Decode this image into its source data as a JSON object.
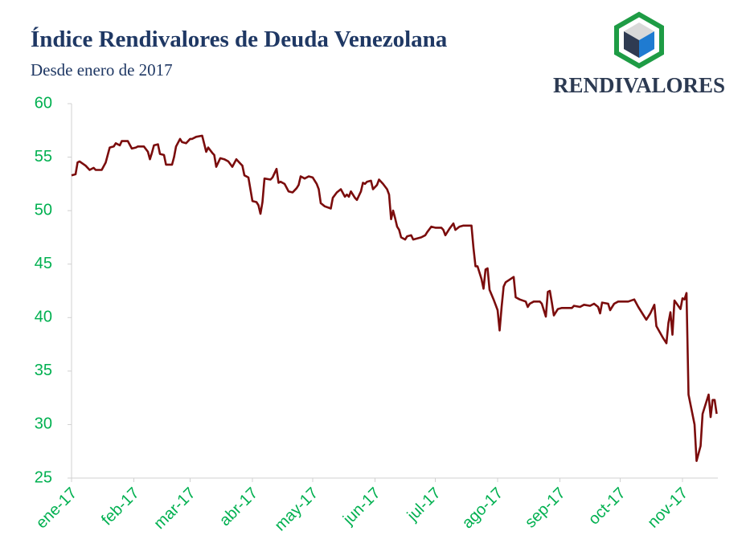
{
  "chart_data": {
    "type": "line",
    "title": "Índice Rendivalores de Deuda Venezolana",
    "subtitle": "Desde enero de 2017",
    "color": "#7b0c0c",
    "x": [
      0,
      2,
      3,
      4,
      7,
      9,
      11,
      12,
      15,
      17,
      19,
      21,
      22,
      24,
      25,
      28,
      30,
      32,
      33,
      36,
      38,
      39,
      40,
      41,
      43,
      44,
      46,
      47,
      50,
      51,
      52,
      54,
      55,
      57,
      59,
      60,
      62,
      65,
      67,
      68,
      70,
      71,
      72,
      74,
      76,
      78,
      80,
      82,
      84,
      85,
      86,
      88,
      90,
      92,
      93,
      94,
      95,
      96,
      99,
      100,
      102,
      103,
      104,
      106,
      108,
      110,
      112,
      113,
      114,
      116,
      118,
      120,
      122,
      123,
      124,
      126,
      129,
      130,
      132,
      134,
      136,
      137,
      138,
      139,
      141,
      142,
      144,
      145,
      146,
      147,
      149,
      150,
      152,
      153,
      155,
      157,
      158,
      159,
      160,
      161,
      162,
      163,
      164,
      166,
      167,
      169,
      170,
      172,
      174,
      176,
      177,
      179,
      181,
      184,
      185,
      186,
      188,
      190,
      191,
      193,
      195,
      199,
      200,
      201,
      202,
      204,
      205,
      206,
      207,
      208,
      210,
      211,
      212,
      213,
      214,
      215,
      216,
      220,
      221,
      223,
      226,
      227,
      228,
      230,
      233,
      234,
      236,
      237,
      238,
      239,
      240,
      242,
      244,
      247,
      249,
      250,
      253,
      255,
      258,
      260,
      262,
      263,
      264,
      267,
      268,
      270,
      272,
      275,
      277,
      280,
      282,
      284,
      286,
      288,
      290,
      291,
      294,
      296,
      297,
      298,
      299,
      300,
      303,
      304,
      305,
      306,
      307,
      310,
      311,
      313,
      314,
      317,
      318,
      319,
      320,
      321
    ],
    "values": [
      53.3,
      53.4,
      54.5,
      54.6,
      54.2,
      53.8,
      54.0,
      53.8,
      53.8,
      54.5,
      55.9,
      56.0,
      56.3,
      56.1,
      56.5,
      56.5,
      55.8,
      55.9,
      56.0,
      56.0,
      55.5,
      54.8,
      55.4,
      56.1,
      56.2,
      55.3,
      55.2,
      54.3,
      54.3,
      55.0,
      56.0,
      56.7,
      56.4,
      56.3,
      56.7,
      56.7,
      56.9,
      57.0,
      55.5,
      55.9,
      55.4,
      55.2,
      54.1,
      54.9,
      54.8,
      54.6,
      54.1,
      54.8,
      54.4,
      54.2,
      53.3,
      53.1,
      50.9,
      50.8,
      50.5,
      49.7,
      50.8,
      53.0,
      52.9,
      53.1,
      53.9,
      52.6,
      52.7,
      52.5,
      51.8,
      51.7,
      52.1,
      52.4,
      53.2,
      53.0,
      53.2,
      53.1,
      52.5,
      52.0,
      50.7,
      50.4,
      50.2,
      51.2,
      51.7,
      52.0,
      51.3,
      51.5,
      51.3,
      51.8,
      51.2,
      51.0,
      51.8,
      52.6,
      52.5,
      52.7,
      52.8,
      52.0,
      52.4,
      52.9,
      52.5,
      52.0,
      51.5,
      49.2,
      50.0,
      49.3,
      48.5,
      48.2,
      47.5,
      47.3,
      47.6,
      47.7,
      47.3,
      47.4,
      47.5,
      47.7,
      48.0,
      48.5,
      48.4,
      48.4,
      48.2,
      47.7,
      48.3,
      48.8,
      48.2,
      48.5,
      48.6,
      48.6,
      46.5,
      44.8,
      44.8,
      43.6,
      42.7,
      44.5,
      44.6,
      42.6,
      41.7,
      41.2,
      40.7,
      38.8,
      41.0,
      42.9,
      43.3,
      43.8,
      41.9,
      41.7,
      41.5,
      41.0,
      41.3,
      41.5,
      41.5,
      41.3,
      40.1,
      42.4,
      42.5,
      41.4,
      40.2,
      40.8,
      40.9,
      40.9,
      40.9,
      41.1,
      41.0,
      41.2,
      41.1,
      41.3,
      41.0,
      40.4,
      41.4,
      41.3,
      40.7,
      41.3,
      41.5,
      41.5,
      41.5,
      41.7,
      41.0,
      40.4,
      39.8,
      40.4,
      41.2,
      39.2,
      38.2,
      37.6,
      39.5,
      40.5,
      38.4,
      41.6,
      40.8,
      41.8,
      41.7,
      42.3,
      32.8,
      30.0,
      26.6,
      28.0,
      31.0,
      32.8,
      30.7,
      32.3,
      32.3,
      31.0
    ],
    "xlim": [
      0,
      322
    ],
    "xticks": [
      {
        "value": 0,
        "label": "ene-17"
      },
      {
        "value": 31,
        "label": "feb-17"
      },
      {
        "value": 59,
        "label": "mar-17"
      },
      {
        "value": 90,
        "label": "abr-17"
      },
      {
        "value": 120,
        "label": "may-17"
      },
      {
        "value": 151,
        "label": "jun-17"
      },
      {
        "value": 181,
        "label": "jul-17"
      },
      {
        "value": 212,
        "label": "ago-17"
      },
      {
        "value": 243,
        "label": "sep-17"
      },
      {
        "value": 273,
        "label": "oct-17"
      },
      {
        "value": 304,
        "label": "nov-17"
      }
    ],
    "ylim": [
      25,
      60
    ],
    "yticks": [
      25,
      30,
      35,
      40,
      45,
      50,
      55,
      60
    ],
    "grid": false
  },
  "logo": {
    "text": "RENDIVALORES"
  }
}
